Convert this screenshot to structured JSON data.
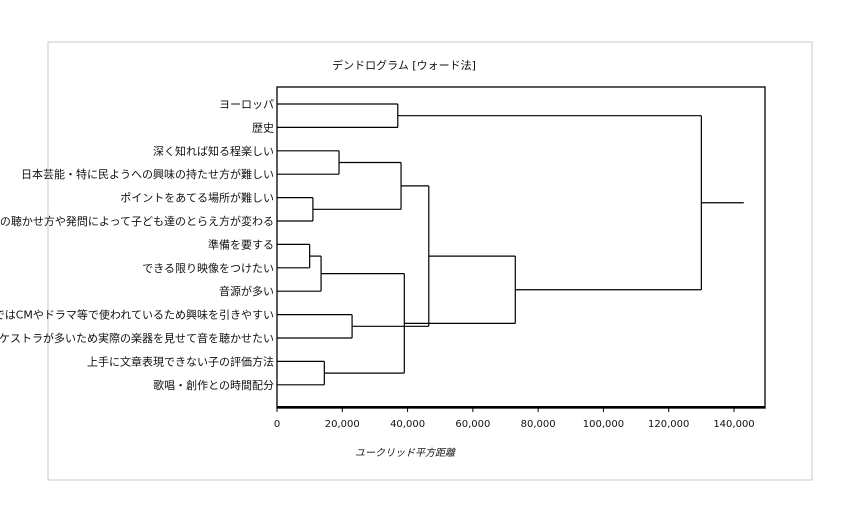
{
  "chart_data": {
    "type": "dendrogram",
    "title": "デンドログラム [ウォード法]",
    "xlabel": "ユークリッド平方距離",
    "xlim": [
      0,
      150000
    ],
    "xticks": [
      "0",
      "20,000",
      "40,000",
      "60,000",
      "80,000",
      "100,000",
      "120,000",
      "140,000"
    ],
    "xtick_values": [
      0,
      20000,
      40000,
      60000,
      80000,
      100000,
      120000,
      140000
    ],
    "leaves": [
      "ヨーロッパ",
      "歴史",
      "深く知れば知る程楽しい",
      "日本芸能・特に民ようへの興味の持たせ方が難しい",
      "ポイントをあてる場所が難しい",
      "曲の聴かせ方や発問によって子ども達のとらえ方が変わる",
      "準備を要する",
      "できる限り映像をつけたい",
      "音源が多い",
      "最近ではCMやドラマ等で使われているため興味を引きやすい",
      "オーケストラが多いため実際の楽器を見せて音を聴かせたい",
      "上手に文章表現できない子の評価方法",
      "歌唱・創作との時間配分"
    ],
    "merges": [
      {
        "left": 0,
        "right": 1,
        "height": 37000
      },
      {
        "left": 2,
        "right": 3,
        "height": 19000
      },
      {
        "left": 4,
        "right": 5,
        "height": 11000
      },
      {
        "left": 6,
        "right": 7,
        "height": 10000
      },
      {
        "left": 11,
        "right": 12,
        "height": 14500
      },
      {
        "left": 9,
        "right": 10,
        "height": 23000
      },
      {
        "left": 14,
        "right": 15,
        "height": 38000
      },
      {
        "left": 16,
        "right": 8,
        "height": 13500
      },
      {
        "left": 20,
        "right": 17,
        "height": 39000
      },
      {
        "left": 19,
        "right": 18,
        "height": 46500
      },
      {
        "left": 21,
        "right": 22,
        "height": 73000
      },
      {
        "left": 13,
        "right": 23,
        "height": 130000
      }
    ],
    "root_stub": 143000,
    "grid": false
  }
}
